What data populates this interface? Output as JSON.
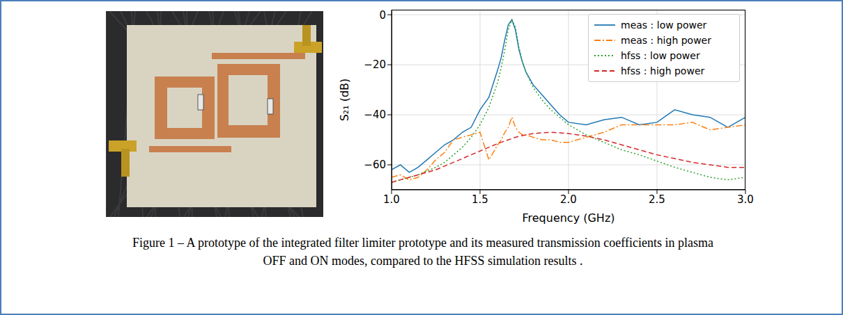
{
  "chart_data": {
    "type": "line",
    "x_label": "Frequency (GHz)",
    "y_label": "S₂₁ (dB)",
    "x": [
      1.0,
      1.05,
      1.1,
      1.15,
      1.2,
      1.25,
      1.3,
      1.35,
      1.4,
      1.45,
      1.5,
      1.55,
      1.6,
      1.62,
      1.64,
      1.66,
      1.68,
      1.7,
      1.72,
      1.74,
      1.76,
      1.8,
      1.85,
      1.9,
      1.95,
      2.0,
      2.1,
      2.2,
      2.3,
      2.4,
      2.5,
      2.6,
      2.7,
      2.8,
      2.9,
      3.0
    ],
    "series": [
      {
        "name": "meas : low power",
        "color": "#1f77b4",
        "line_style": "solid",
        "values": [
          -62,
          -60,
          -63,
          -61,
          -58,
          -55,
          -52,
          -50,
          -47,
          -45,
          -38,
          -33,
          -22,
          -17,
          -10,
          -4,
          -2,
          -6,
          -14,
          -19,
          -23,
          -28,
          -32,
          -36,
          -40,
          -43,
          -44,
          -42,
          -41,
          -44,
          -43,
          -38,
          -40,
          -41,
          -45,
          -41
        ]
      },
      {
        "name": "meas : high power",
        "color": "#ff7f0e",
        "line_style": "dashdot",
        "values": [
          -65,
          -64,
          -66,
          -65,
          -62,
          -58,
          -55,
          -50,
          -49,
          -48,
          -47,
          -58,
          -52,
          -50,
          -47,
          -45,
          -41,
          -45,
          -47,
          -48,
          -48,
          -49,
          -50,
          -50,
          -51,
          -51,
          -49,
          -47,
          -44,
          -44,
          -44,
          -44,
          -43,
          -46,
          -45,
          -44
        ]
      },
      {
        "name": "hfss : low power",
        "color": "#2ca02c",
        "line_style": "dotted",
        "values": [
          -67,
          -66,
          -65,
          -64,
          -62.5,
          -61,
          -59,
          -56,
          -53,
          -49,
          -44,
          -37,
          -27,
          -21,
          -14,
          -6,
          -2,
          -5,
          -13,
          -19,
          -23,
          -29,
          -34,
          -38,
          -41,
          -44,
          -48,
          -51,
          -54,
          -56,
          -58.5,
          -61,
          -63,
          -65,
          -66,
          -65
        ]
      },
      {
        "name": "hfss : high power",
        "color": "#d62728",
        "line_style": "dashed",
        "values": [
          -67,
          -66,
          -65,
          -64,
          -63,
          -62,
          -60.5,
          -59,
          -57.5,
          -56,
          -54.5,
          -53,
          -51.5,
          -51,
          -50.5,
          -50,
          -49.5,
          -49,
          -48.6,
          -48.3,
          -48,
          -47.5,
          -47.2,
          -47,
          -47.2,
          -47.5,
          -48.5,
          -50,
          -52,
          -54,
          -56,
          -57.5,
          -59,
          -60,
          -61,
          -61
        ]
      }
    ],
    "xlim": [
      1.0,
      3.0
    ],
    "xticks": [
      {
        "value": 1.0,
        "label": "1.0"
      },
      1.5,
      {
        "value": 2.0,
        "label": "2.0"
      },
      2.5,
      {
        "value": 3.0,
        "label": "3.0"
      }
    ],
    "ylim": [
      -70,
      2
    ],
    "yticks": [
      {
        "value": -60,
        "label": "−60"
      },
      {
        "value": -40,
        "label": "−40"
      },
      {
        "value": -20,
        "label": "−20"
      },
      0
    ],
    "grid": true,
    "legend": "upper right"
  },
  "caption": "Figure 1 – A prototype of the integrated filter limiter prototype and its measured transmission coefficients in plasma OFF and ON modes, compared to the HFSS simulation results ."
}
